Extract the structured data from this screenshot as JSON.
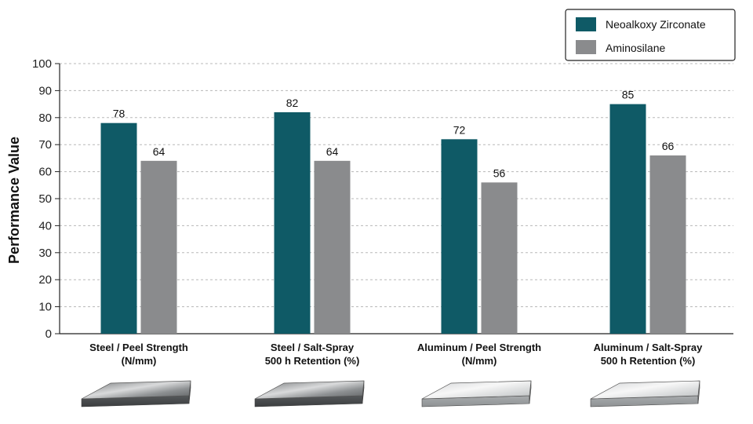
{
  "chart_data": {
    "type": "bar",
    "title": "",
    "xlabel": "",
    "ylabel": "Performance Value",
    "ylim": [
      0,
      100
    ],
    "yticks": [
      0,
      10,
      20,
      30,
      40,
      50,
      60,
      70,
      80,
      90,
      100
    ],
    "grid": true,
    "legend_position": "top-right",
    "categories": [
      [
        "Steel / Peel Strength",
        "(N/mm)"
      ],
      [
        "Steel / Salt-Spray",
        "500 h Retention (%)"
      ],
      [
        "Aluminum / Peel Strength",
        "(N/mm)"
      ],
      [
        "Aluminum / Salt-Spray",
        "500 h Retention (%)"
      ]
    ],
    "series": [
      {
        "name": "Neoalkoxy Zirconate",
        "color": "#0f5a66",
        "values": [
          78,
          82,
          72,
          85
        ]
      },
      {
        "name": "Aminosilane",
        "color": "#8a8b8d",
        "values": [
          64,
          64,
          56,
          66
        ]
      }
    ],
    "substrate_icons": [
      "steel-plate",
      "steel-plate",
      "aluminum-plate",
      "aluminum-plate"
    ]
  }
}
